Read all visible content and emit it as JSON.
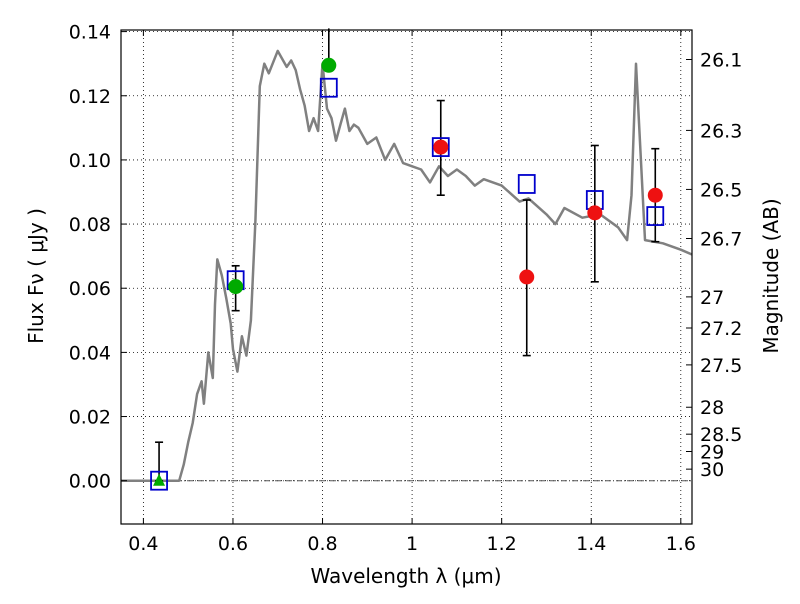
{
  "chart_data": {
    "type": "scatter",
    "xlabel": "Wavelength  λ (μm)",
    "ylabel": "Flux  Fν  ( μJy )",
    "ylabel_right": "Magnitude (AB)",
    "xlim": [
      0.35,
      1.625
    ],
    "ylim": [
      -0.0135,
      0.1405
    ],
    "grid": true,
    "x_ticks": [
      0.4,
      0.6,
      0.8,
      1.0,
      1.2,
      1.4,
      1.6
    ],
    "x_tick_labels": [
      "0.4",
      "0.6",
      "0.8",
      "1",
      "1.2",
      "1.4",
      "1.6"
    ],
    "y_ticks": [
      0.0,
      0.02,
      0.04,
      0.06,
      0.08,
      0.1,
      0.12,
      0.14
    ],
    "y_tick_labels": [
      "0.00",
      "0.02",
      "0.04",
      "0.06",
      "0.08",
      "0.10",
      "0.12",
      "0.14"
    ],
    "mag_ticks": [
      {
        "label": "26.1",
        "flux": 0.1313
      },
      {
        "label": "26.3",
        "flux": 0.1092
      },
      {
        "label": "26.5",
        "flux": 0.0908
      },
      {
        "label": "26.7",
        "flux": 0.0755
      },
      {
        "label": "27",
        "flux": 0.0573
      },
      {
        "label": "27.2",
        "flux": 0.0476
      },
      {
        "label": "27.5",
        "flux": 0.0361
      },
      {
        "label": "28",
        "flux": 0.0229
      },
      {
        "label": "28.5",
        "flux": 0.0145
      },
      {
        "label": "29",
        "flux": 0.0091
      },
      {
        "label": "30",
        "flux": 0.0036
      }
    ],
    "colors": {
      "model": "#808080",
      "model_points": "#0000cc",
      "green_points": "#00aa00",
      "red_points": "#ee1111",
      "errorbars": "#000000"
    },
    "series": [
      {
        "id": "model",
        "kind": "line",
        "x": [
          0.35,
          0.48,
          0.49,
          0.5,
          0.51,
          0.52,
          0.53,
          0.535,
          0.545,
          0.555,
          0.56,
          0.565,
          0.575,
          0.585,
          0.595,
          0.6,
          0.61,
          0.62,
          0.63,
          0.64,
          0.65,
          0.66,
          0.67,
          0.68,
          0.7,
          0.72,
          0.73,
          0.74,
          0.75,
          0.76,
          0.77,
          0.78,
          0.79,
          0.8,
          0.81,
          0.82,
          0.83,
          0.84,
          0.85,
          0.86,
          0.87,
          0.88,
          0.9,
          0.92,
          0.94,
          0.96,
          0.98,
          1.0,
          1.02,
          1.04,
          1.06,
          1.08,
          1.1,
          1.12,
          1.14,
          1.16,
          1.2,
          1.24,
          1.26,
          1.3,
          1.32,
          1.34,
          1.38,
          1.42,
          1.46,
          1.48,
          1.49,
          1.5,
          1.52,
          1.56,
          1.6,
          1.625
        ],
        "y": [
          0.0,
          0.0,
          0.005,
          0.012,
          0.018,
          0.027,
          0.031,
          0.024,
          0.04,
          0.032,
          0.055,
          0.069,
          0.064,
          0.057,
          0.049,
          0.041,
          0.034,
          0.045,
          0.039,
          0.05,
          0.081,
          0.123,
          0.13,
          0.127,
          0.134,
          0.129,
          0.131,
          0.128,
          0.122,
          0.117,
          0.109,
          0.113,
          0.109,
          0.13,
          0.116,
          0.113,
          0.106,
          0.111,
          0.116,
          0.109,
          0.111,
          0.11,
          0.105,
          0.107,
          0.1,
          0.105,
          0.099,
          0.098,
          0.097,
          0.093,
          0.098,
          0.095,
          0.097,
          0.095,
          0.092,
          0.094,
          0.092,
          0.087,
          0.088,
          0.083,
          0.08,
          0.085,
          0.082,
          0.083,
          0.079,
          0.075,
          0.089,
          0.13,
          0.075,
          0.074,
          0.072,
          0.0705
        ]
      },
      {
        "id": "model-photometry",
        "kind": "markers",
        "marker": "open-square",
        "x": [
          0.435,
          0.606,
          0.814,
          1.064,
          1.256,
          1.408,
          1.543
        ],
        "y": [
          0.0,
          0.0625,
          0.1225,
          0.104,
          0.0925,
          0.0875,
          0.0825
        ]
      },
      {
        "id": "green-observed",
        "kind": "markers",
        "marker": "filled-circle",
        "x": [
          0.606,
          0.814
        ],
        "y": [
          0.0605,
          0.1295
        ],
        "yerr_low": [
          0.053,
          null
        ],
        "yerr_high": [
          0.067,
          0.141
        ]
      },
      {
        "id": "green-upper-limit",
        "kind": "markers",
        "marker": "filled-triangle",
        "x": [
          0.435
        ],
        "y": [
          0.0
        ],
        "yerr_low": [
          0.0
        ],
        "yerr_high": [
          0.012
        ]
      },
      {
        "id": "red-observed",
        "kind": "markers",
        "marker": "filled-circle",
        "x": [
          1.064,
          1.256,
          1.408,
          1.543
        ],
        "y": [
          0.104,
          0.0635,
          0.0835,
          0.089
        ],
        "yerr_low": [
          0.089,
          0.039,
          0.062,
          0.0745
        ],
        "yerr_high": [
          0.1185,
          0.0875,
          0.1045,
          0.1035
        ]
      }
    ]
  }
}
